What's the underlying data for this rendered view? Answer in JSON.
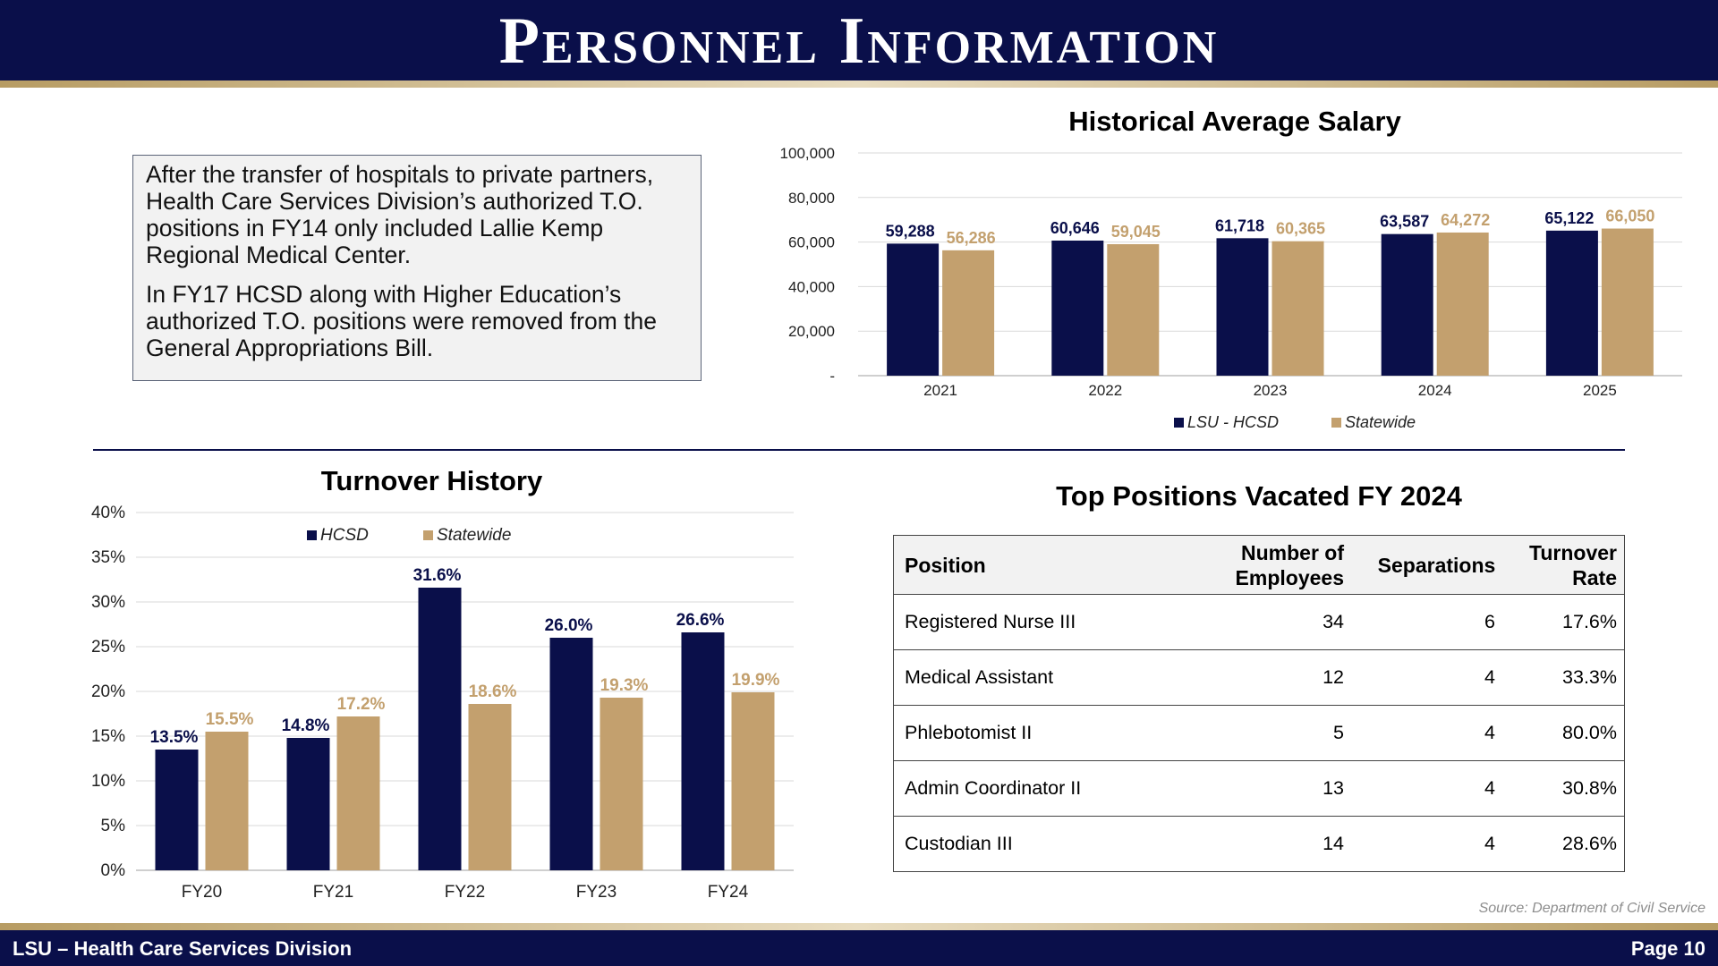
{
  "header": {
    "title": "Personnel Information"
  },
  "textbox": {
    "paragraphs": [
      "After the transfer of hospitals to private partners, Health Care Services Division’s authorized T.O. positions in FY14 only included Lallie Kemp Regional Medical Center.",
      "In FY17 HCSD along with Higher Education’s authorized T.O. positions were removed from the General Appropriations Bill."
    ]
  },
  "chart_data": [
    {
      "type": "bar",
      "title": "Historical Average Salary",
      "categories": [
        "2021",
        "2022",
        "2023",
        "2024",
        "2025"
      ],
      "series": [
        {
          "name": "LSU - HCSD",
          "values": [
            59288,
            60646,
            61718,
            63587,
            65122
          ]
        },
        {
          "name": "Statewide",
          "values": [
            56286,
            59045,
            60365,
            64272,
            66050
          ]
        }
      ],
      "data_labels": [
        [
          "59,288",
          "60,646",
          "61,718",
          "63,587",
          "65,122"
        ],
        [
          "56,286",
          "59,045",
          "60,365",
          "64,272",
          "66,050"
        ]
      ],
      "ylim": [
        0,
        100000
      ],
      "yticks": [
        0,
        20000,
        40000,
        60000,
        80000,
        100000
      ],
      "ytick_labels": [
        "-",
        "20,000",
        "40,000",
        "60,000",
        "80,000",
        "100,000"
      ],
      "grid": true,
      "legend": "bottom",
      "colors": [
        "#0a0f4a",
        "#c3a06e"
      ],
      "label_colors": [
        "#0a0f4a",
        "#c3a06e"
      ]
    },
    {
      "type": "bar",
      "title": "Turnover History",
      "categories": [
        "FY20",
        "FY21",
        "FY22",
        "FY23",
        "FY24"
      ],
      "series": [
        {
          "name": "HCSD",
          "values": [
            13.5,
            14.8,
            31.6,
            26.0,
            26.6
          ]
        },
        {
          "name": "Statewide",
          "values": [
            15.5,
            17.2,
            18.6,
            19.3,
            19.9
          ]
        }
      ],
      "data_labels": [
        [
          "13.5%",
          "14.8%",
          "31.6%",
          "26.0%",
          "26.6%"
        ],
        [
          "15.5%",
          "17.2%",
          "18.6%",
          "19.3%",
          "19.9%"
        ]
      ],
      "ylim": [
        0,
        40
      ],
      "yticks": [
        0,
        5,
        10,
        15,
        20,
        25,
        30,
        35,
        40
      ],
      "ytick_labels": [
        "0%",
        "5%",
        "10%",
        "15%",
        "20%",
        "25%",
        "30%",
        "35%",
        "40%"
      ],
      "grid": true,
      "legend": "top",
      "colors": [
        "#0a0f4a",
        "#c3a06e"
      ],
      "label_colors": [
        "#0a0f4a",
        "#c3a06e"
      ]
    }
  ],
  "table": {
    "title": "Top Positions Vacated FY 2024",
    "headers": [
      "Position",
      "Number of Employees",
      "Separations",
      "Turnover Rate"
    ],
    "rows": [
      [
        "Registered Nurse III",
        "34",
        "6",
        "17.6%"
      ],
      [
        "Medical Assistant",
        "12",
        "4",
        "33.3%"
      ],
      [
        "Phlebotomist II",
        "5",
        "4",
        "80.0%"
      ],
      [
        "Admin Coordinator II",
        "13",
        "4",
        "30.8%"
      ],
      [
        "Custodian III",
        "14",
        "4",
        "28.6%"
      ]
    ]
  },
  "source": "Source: Department of Civil Service",
  "footer": {
    "left": "LSU – Health Care Services Division",
    "right": "Page 10"
  },
  "colors": {
    "navy": "#0a0f4a",
    "gold": "#c3a06e"
  }
}
